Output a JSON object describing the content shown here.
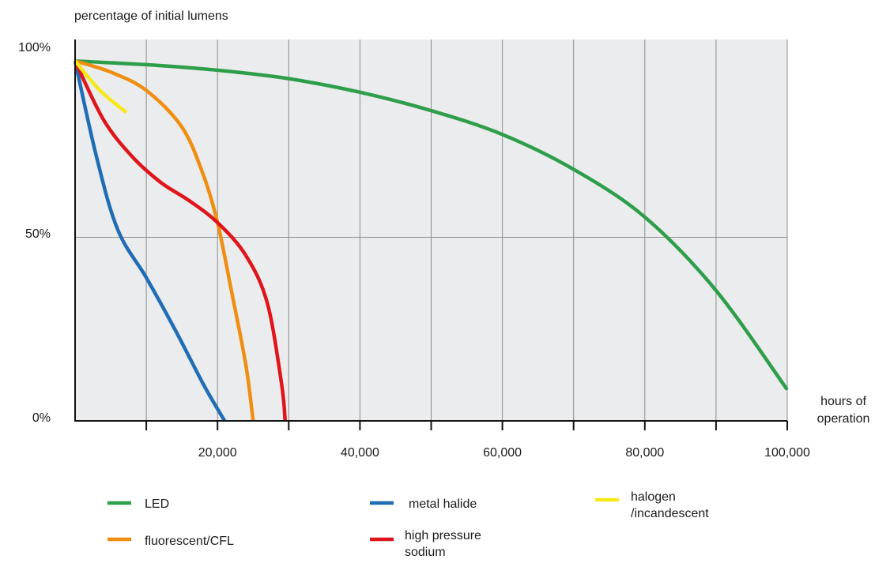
{
  "chart_data": {
    "type": "line",
    "title": "",
    "ylabel": "percentage of initial lumens",
    "xlabel": "hours of operation",
    "xlabel_lines": [
      "hours of",
      "operation"
    ],
    "xlim": [
      0,
      100000
    ],
    "ylim": [
      0,
      100
    ],
    "x_ticks": [
      10000,
      20000,
      30000,
      40000,
      50000,
      60000,
      70000,
      80000,
      90000,
      100000
    ],
    "x_tick_labels": [
      {
        "value": 20000,
        "label": "20,000"
      },
      {
        "value": 40000,
        "label": "40,000"
      },
      {
        "value": 60000,
        "label": "60,000"
      },
      {
        "value": 80000,
        "label": "80,000"
      },
      {
        "value": 100000,
        "label": "100,000"
      }
    ],
    "y_tick_labels": [
      {
        "value": 100,
        "label": "100%"
      },
      {
        "value": 50,
        "label": "50%"
      },
      {
        "value": 0,
        "label": "0%"
      }
    ],
    "grid": {
      "vertical": true,
      "horizontal_at": [
        50
      ],
      "background": "#ebeced"
    },
    "legend_position": "bottom",
    "series": [
      {
        "name": "LED",
        "key": "led",
        "color": "#2e9e4b",
        "x": [
          0,
          10000,
          20000,
          30000,
          40000,
          50000,
          60000,
          70000,
          80000,
          90000,
          100000
        ],
        "y": [
          98,
          97,
          95.5,
          93.2,
          89.5,
          84.5,
          78,
          68.5,
          55.5,
          35.5,
          8.5
        ]
      },
      {
        "name": "metal halide",
        "key": "metal_halide",
        "color": "#1f6db5",
        "x": [
          0,
          3000,
          6000,
          10000,
          14000,
          18000,
          21000
        ],
        "y": [
          98,
          72,
          52,
          39,
          25,
          10,
          0
        ]
      },
      {
        "name": "halogen\n/incandescent",
        "key": "halogen",
        "color": "#f7e81a",
        "x": [
          0,
          3500,
          7200
        ],
        "y": [
          98,
          90,
          84
        ]
      },
      {
        "name": "fluorescent/CFL",
        "key": "fluorescent",
        "color": "#ef8e10",
        "x": [
          0,
          5000,
          10000,
          15000,
          18000,
          20000,
          22000,
          24000,
          25000
        ],
        "y": [
          98,
          95,
          90,
          80,
          67,
          54,
          35,
          15,
          0
        ]
      },
      {
        "name": "high pressure\nsodium",
        "key": "hps",
        "color": "#e0141b",
        "x": [
          0,
          4000,
          8000,
          12000,
          16000,
          20000,
          24000,
          27000,
          29000,
          29500
        ],
        "y": [
          98,
          82,
          72,
          65,
          60,
          54,
          45,
          32,
          10,
          0
        ]
      }
    ],
    "legend": [
      {
        "key": "led",
        "label": "LED",
        "lines": [
          "LED"
        ]
      },
      {
        "key": "metal_halide",
        "label": "metal halide",
        "lines": [
          "metal halide"
        ]
      },
      {
        "key": "halogen",
        "label": "halogen /incandescent",
        "lines": [
          "halogen",
          "/incandescent"
        ]
      },
      {
        "key": "fluorescent",
        "label": "fluorescent/CFL",
        "lines": [
          "fluorescent/CFL"
        ]
      },
      {
        "key": "hps",
        "label": "high pressure sodium",
        "lines": [
          "high pressure",
          "sodium"
        ]
      }
    ]
  }
}
